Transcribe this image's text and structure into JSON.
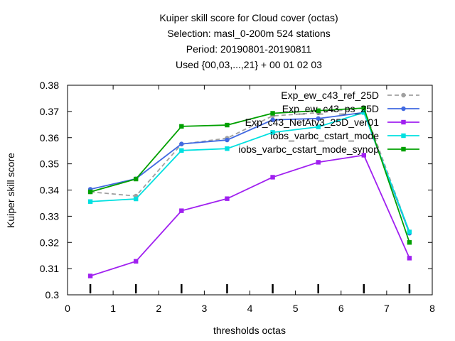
{
  "chart_data": {
    "type": "line",
    "title_lines": [
      "Kuiper skill score  for Cloud cover (octas)",
      "Selection: masl_0-200m    524 stations",
      "Period: 20190801-20190811",
      "Used {00,03,...,21} + 00 01 02 03"
    ],
    "xlabel": "thresholds octas",
    "ylabel": "Kuiper skill score",
    "xlim": [
      0,
      8
    ],
    "ylim": [
      0.3,
      0.38
    ],
    "xticks": [
      "0",
      "1",
      "2",
      "3",
      "4",
      "5",
      "6",
      "7",
      "8"
    ],
    "yticks": [
      "0.3",
      "0.31",
      "0.32",
      "0.33",
      "0.34",
      "0.35",
      "0.36",
      "0.37",
      "0.38"
    ],
    "grid": false,
    "legend_position": "top-right",
    "threshold_markers": [
      0.5,
      1.5,
      2.5,
      3.5,
      4.5,
      5.5,
      6.5,
      7.5
    ],
    "x": [
      0.5,
      1.5,
      2.5,
      3.5,
      4.5,
      5.5,
      6.5,
      7.5
    ],
    "series": [
      {
        "name": "Exp_ew_c43_ref_25D",
        "color": "#a0a0a0",
        "dashed": true,
        "marker": "circle",
        "values": [
          0.3393,
          0.3377,
          0.3575,
          0.3598,
          0.3683,
          0.3695,
          0.3713,
          0.324
        ]
      },
      {
        "name": "Exp_ew_c43_ps_25D",
        "color": "#4169e1",
        "dashed": false,
        "marker": "circle",
        "values": [
          0.3403,
          0.3443,
          0.3576,
          0.3591,
          0.3668,
          0.3673,
          0.3696,
          0.3235
        ]
      },
      {
        "name": "Exp_c43_NetAtv3_25D_ver01",
        "color": "#a020f0",
        "dashed": false,
        "marker": "square",
        "values": [
          0.3072,
          0.3128,
          0.3321,
          0.3367,
          0.3449,
          0.3506,
          0.3533,
          0.314
        ]
      },
      {
        "name": "iobs_varbc_cstart_mode",
        "color": "#00e0e0",
        "dashed": false,
        "marker": "square",
        "values": [
          0.3356,
          0.3366,
          0.3551,
          0.3558,
          0.362,
          0.3641,
          0.3696,
          0.324
        ]
      },
      {
        "name": "iobs_varbc_cstart_mode_synop",
        "color": "#00a000",
        "dashed": false,
        "marker": "square",
        "values": [
          0.3393,
          0.3442,
          0.3643,
          0.3648,
          0.3693,
          0.3703,
          0.3713,
          0.32
        ]
      }
    ]
  }
}
